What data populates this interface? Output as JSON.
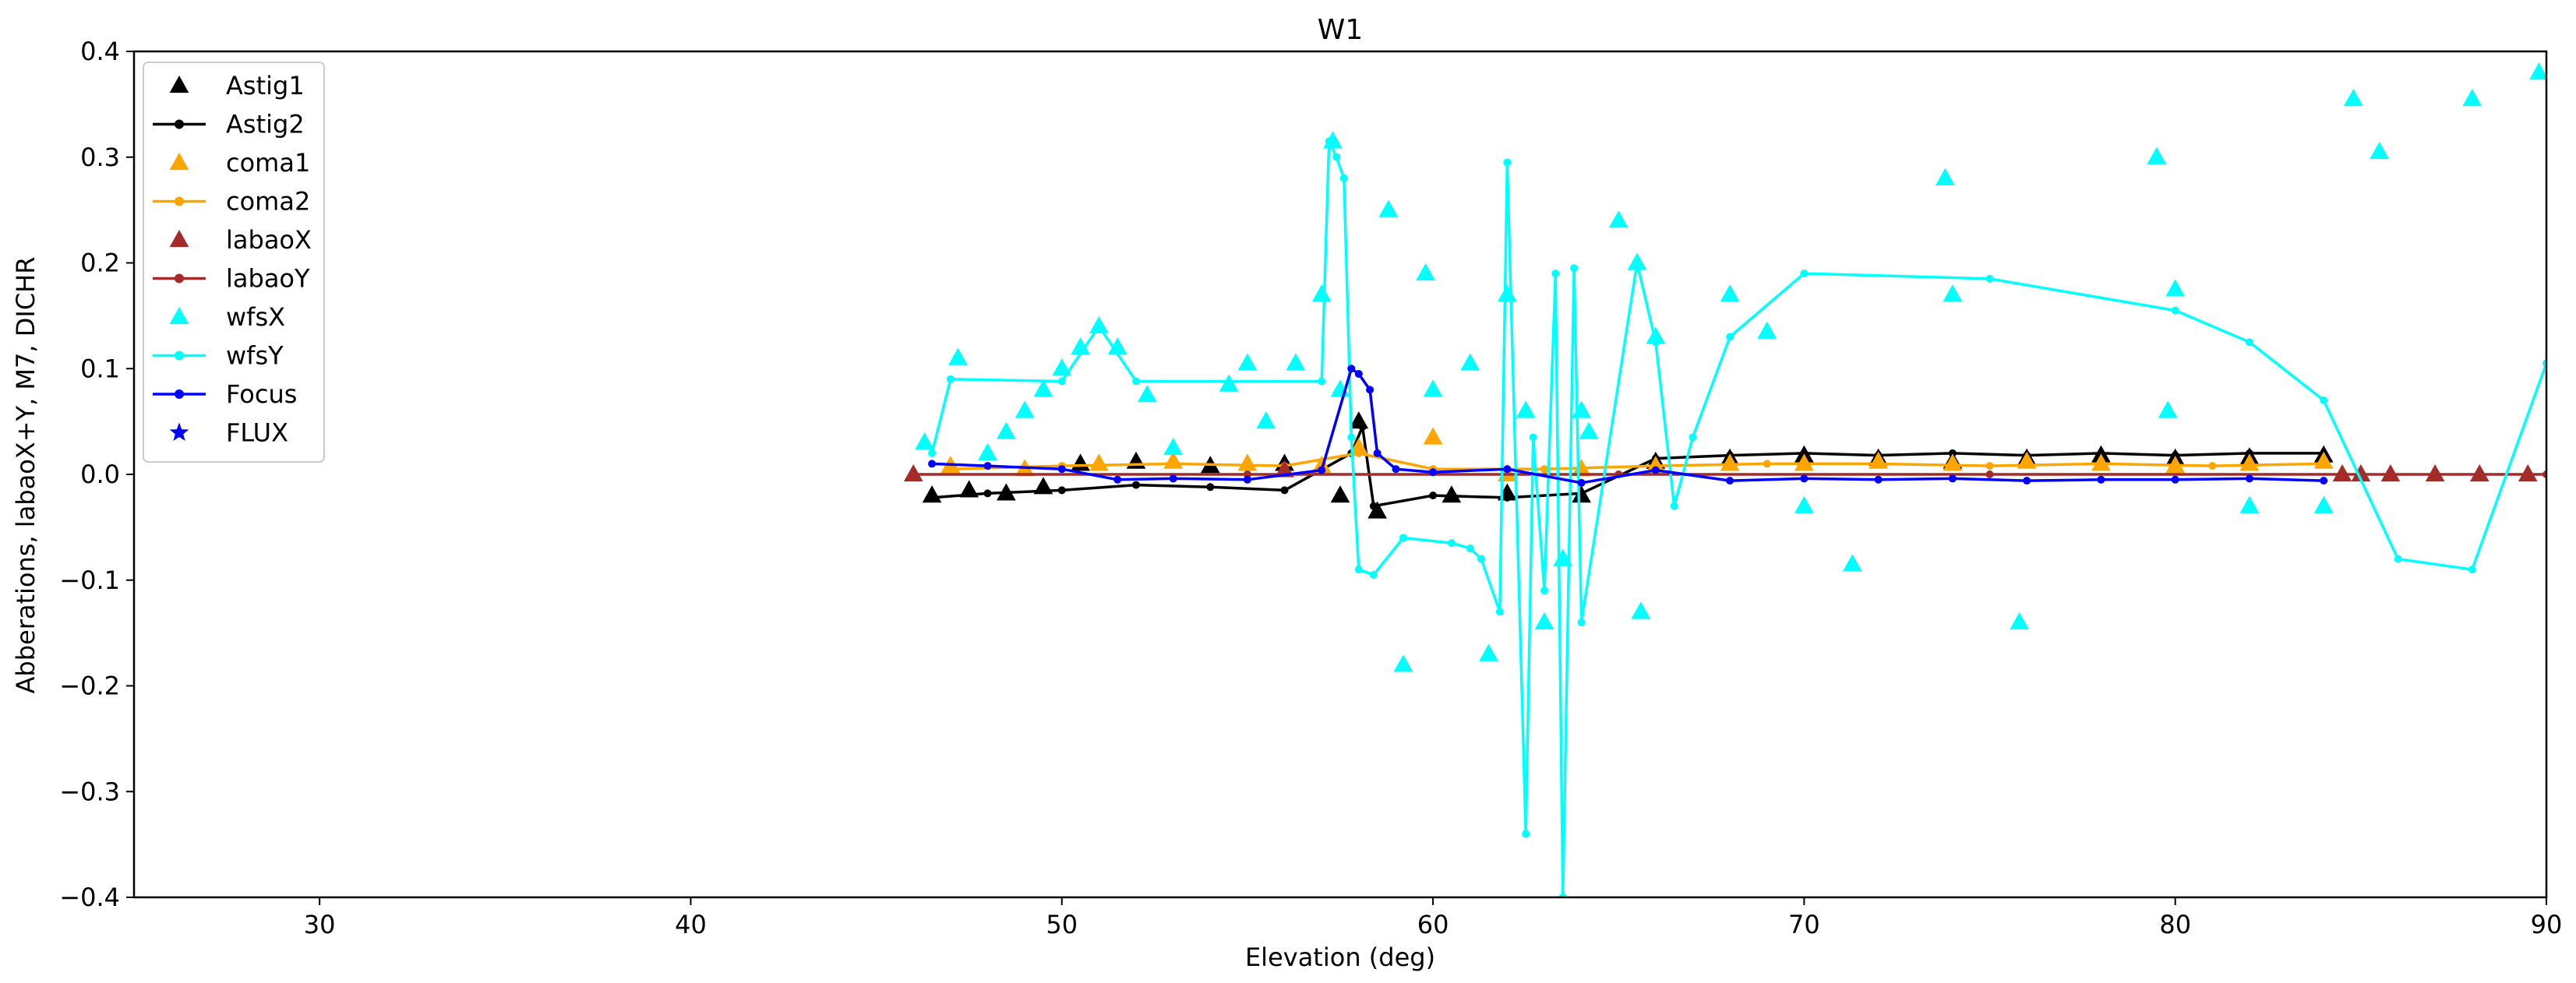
{
  "chart_data": {
    "type": "line",
    "title": "W1",
    "xlabel": "Elevation (deg)",
    "ylabel": "Abberations, labaoX+Y, M7, DICHR",
    "xlim": [
      25,
      90
    ],
    "ylim": [
      -0.4,
      0.4
    ],
    "xticks": [
      30,
      40,
      50,
      60,
      70,
      80,
      90
    ],
    "xtick_labels": [
      "30",
      "40",
      "50",
      "60",
      "70",
      "80",
      "90"
    ],
    "yticks": [
      -0.4,
      -0.3,
      -0.2,
      -0.1,
      0.0,
      0.1,
      0.2,
      0.3,
      0.4
    ],
    "ytick_labels": [
      "−0.4",
      "−0.3",
      "−0.2",
      "−0.1",
      "0.0",
      "0.1",
      "0.2",
      "0.3",
      "0.4"
    ],
    "grid": false,
    "legend_position": "top-left",
    "series": [
      {
        "name": "Astig1",
        "color": "#000000",
        "style": "markers",
        "marker": "triangle",
        "x": [
          46.5,
          47.5,
          48.5,
          49.5,
          50.5,
          52.0,
          54.0,
          56.0,
          57.5,
          58.0,
          58.5,
          60.5,
          62.0,
          64.0,
          66.0,
          68.0,
          70.0,
          72.0,
          74.0,
          76.0,
          78.0,
          80.0,
          82.0,
          84.0
        ],
        "y": [
          -0.02,
          -0.015,
          -0.018,
          -0.012,
          0.01,
          0.012,
          0.008,
          0.01,
          -0.02,
          0.05,
          -0.035,
          -0.02,
          -0.018,
          -0.02,
          0.012,
          0.015,
          0.018,
          0.015,
          0.012,
          0.015,
          0.018,
          0.015,
          0.016,
          0.018
        ]
      },
      {
        "name": "Astig2",
        "color": "#000000",
        "style": "line-markers",
        "marker": "dot",
        "x": [
          46.5,
          48.0,
          50.0,
          52.0,
          54.0,
          56.0,
          57.8,
          58.1,
          58.4,
          60.0,
          62.0,
          64.0,
          66.0,
          68.0,
          70.0,
          72.0,
          74.0,
          76.0,
          78.0,
          80.0,
          82.0,
          84.0
        ],
        "y": [
          -0.022,
          -0.018,
          -0.015,
          -0.01,
          -0.012,
          -0.015,
          0.02,
          0.045,
          -0.03,
          -0.02,
          -0.022,
          -0.018,
          0.015,
          0.018,
          0.02,
          0.018,
          0.02,
          0.018,
          0.02,
          0.018,
          0.02,
          0.02
        ]
      },
      {
        "name": "coma1",
        "color": "#ffa500",
        "style": "markers",
        "marker": "triangle",
        "x": [
          47.0,
          49.0,
          51.0,
          53.0,
          55.0,
          57.0,
          58.0,
          60.0,
          62.0,
          64.0,
          66.0,
          68.0,
          70.0,
          72.0,
          74.0,
          76.0,
          78.0,
          80.0,
          82.0,
          84.0
        ],
        "y": [
          0.008,
          0.005,
          0.01,
          0.012,
          0.01,
          0.008,
          0.025,
          0.035,
          0.0,
          0.005,
          0.008,
          0.01,
          0.01,
          0.012,
          0.01,
          0.012,
          0.01,
          0.008,
          0.01,
          0.012
        ]
      },
      {
        "name": "coma2",
        "color": "#ffa500",
        "style": "line-markers",
        "marker": "dot",
        "x": [
          47.0,
          50.0,
          53.0,
          56.0,
          58.0,
          60.0,
          63.0,
          66.0,
          69.0,
          72.0,
          75.0,
          78.0,
          81.0,
          84.0
        ],
        "y": [
          0.005,
          0.008,
          0.01,
          0.008,
          0.02,
          0.005,
          0.005,
          0.008,
          0.01,
          0.01,
          0.008,
          0.01,
          0.008,
          0.01
        ]
      },
      {
        "name": "labaoX",
        "color": "#a52a2a",
        "style": "markers",
        "marker": "triangle",
        "x": [
          46.0,
          56.0,
          84.5,
          85.0,
          85.8,
          87.0,
          88.2,
          89.5
        ],
        "y": [
          0.0,
          0.004,
          0.0,
          0.0,
          0.0,
          0.0,
          0.0,
          0.0
        ]
      },
      {
        "name": "labaoY",
        "color": "#a52a2a",
        "style": "line-markers",
        "marker": "dot",
        "x": [
          46.0,
          55.0,
          65.0,
          75.0,
          84.5,
          87.0,
          90.0
        ],
        "y": [
          0.0,
          0.0,
          0.0,
          0.0,
          0.0,
          0.0,
          0.0
        ]
      },
      {
        "name": "wfsX",
        "color": "#00ffff",
        "style": "markers",
        "marker": "triangle",
        "x": [
          46.3,
          47.2,
          48.0,
          48.5,
          49.0,
          49.5,
          50.0,
          50.5,
          51.0,
          51.5,
          52.3,
          53.0,
          54.5,
          55.0,
          55.5,
          56.3,
          57.0,
          57.3,
          57.5,
          58.8,
          59.2,
          59.8,
          60.0,
          61.0,
          61.5,
          62.0,
          62.5,
          63.0,
          63.5,
          64.0,
          64.2,
          65.0,
          65.5,
          65.6,
          66.0,
          68.0,
          69.0,
          70.0,
          71.3,
          73.8,
          74.0,
          75.8,
          79.5,
          79.8,
          80.0,
          82.0,
          84.0,
          84.8,
          85.5,
          88.0,
          89.8
        ],
        "y": [
          0.03,
          0.11,
          0.02,
          0.04,
          0.06,
          0.08,
          0.1,
          0.12,
          0.14,
          0.12,
          0.075,
          0.025,
          0.085,
          0.105,
          0.05,
          0.105,
          0.17,
          0.315,
          0.08,
          0.25,
          -0.18,
          0.19,
          0.08,
          0.105,
          -0.17,
          0.17,
          0.06,
          -0.14,
          -0.08,
          0.06,
          0.04,
          0.24,
          0.2,
          -0.13,
          0.13,
          0.17,
          0.135,
          -0.03,
          -0.085,
          0.28,
          0.17,
          -0.14,
          0.3,
          0.06,
          0.175,
          -0.03,
          -0.03,
          0.355,
          0.305,
          0.355,
          0.38
        ]
      },
      {
        "name": "wfsY",
        "color": "#00ffff",
        "style": "line-markers",
        "marker": "dot",
        "x": [
          46.5,
          47.0,
          50.0,
          51.0,
          52.0,
          57.0,
          57.2,
          57.4,
          57.6,
          57.8,
          58.0,
          58.4,
          59.2,
          60.5,
          61.0,
          61.3,
          61.8,
          62.0,
          62.5,
          62.7,
          63.0,
          63.3,
          63.5,
          63.8,
          64.0,
          65.5,
          66.0,
          66.5,
          67.0,
          68.0,
          70.0,
          75.0,
          80.0,
          82.0,
          84.0,
          86.0,
          88.0,
          90.0
        ],
        "y": [
          0.02,
          0.09,
          0.088,
          0.14,
          0.088,
          0.088,
          0.315,
          0.3,
          0.28,
          0.035,
          -0.09,
          -0.095,
          -0.06,
          -0.065,
          -0.07,
          -0.08,
          -0.13,
          0.295,
          -0.34,
          0.035,
          -0.11,
          0.19,
          -0.4,
          0.195,
          -0.14,
          0.2,
          0.125,
          -0.03,
          0.035,
          0.13,
          0.19,
          0.185,
          0.155,
          0.125,
          0.07,
          -0.08,
          -0.09,
          0.105
        ]
      },
      {
        "name": "Focus",
        "color": "#0000ff",
        "style": "line-markers",
        "marker": "dot",
        "x": [
          46.5,
          48.0,
          50.0,
          51.5,
          53.0,
          55.0,
          57.0,
          57.8,
          58.0,
          58.3,
          58.5,
          59.0,
          60.0,
          62.0,
          64.0,
          66.0,
          68.0,
          70.0,
          72.0,
          74.0,
          76.0,
          78.0,
          80.0,
          82.0,
          84.0
        ],
        "y": [
          0.01,
          0.008,
          0.005,
          -0.005,
          -0.004,
          -0.005,
          0.004,
          0.1,
          0.095,
          0.08,
          0.02,
          0.005,
          0.002,
          0.005,
          -0.008,
          0.004,
          -0.006,
          -0.004,
          -0.005,
          -0.004,
          -0.006,
          -0.005,
          -0.005,
          -0.004,
          -0.006
        ]
      },
      {
        "name": "FLUX",
        "color": "#0000ff",
        "style": "markers",
        "marker": "star",
        "x": [],
        "y": []
      }
    ]
  }
}
